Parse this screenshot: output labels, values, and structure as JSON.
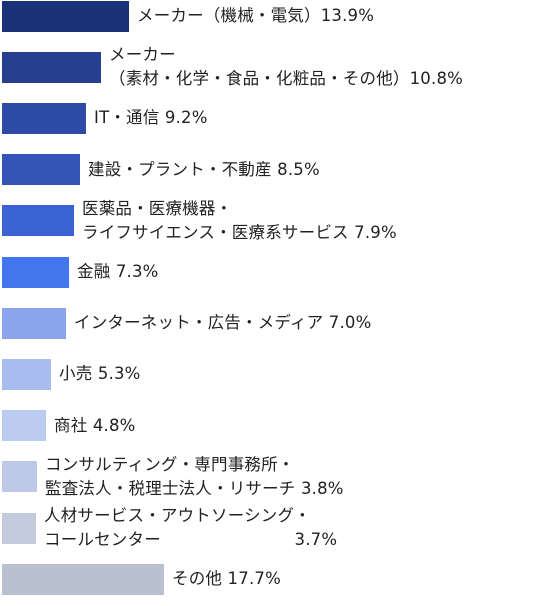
{
  "chart_data": {
    "type": "bar",
    "orientation": "horizontal",
    "bars": [
      {
        "lines": [
          "メーカー（機械・電気）13.9%"
        ],
        "value": 13.9,
        "color": "#1a3178"
      },
      {
        "lines": [
          "メーカー",
          "（素材・化学・食品・化粧品・その他）10.8%"
        ],
        "value": 10.8,
        "color": "#263f8f"
      },
      {
        "lines": [
          "IT・通信 9.2%"
        ],
        "value": 9.2,
        "color": "#2d4ba6"
      },
      {
        "lines": [
          "建設・プラント・不動産 8.5%"
        ],
        "value": 8.5,
        "color": "#3454b8"
      },
      {
        "lines": [
          "医薬品・医療機器・",
          "ライフサイエンス・医療系サービス 7.9%"
        ],
        "value": 7.9,
        "color": "#3c63d4"
      },
      {
        "lines": [
          "金融 7.3%"
        ],
        "value": 7.3,
        "color": "#4376ee"
      },
      {
        "lines": [
          "インターネット・広告・メディア 7.0%"
        ],
        "value": 7.0,
        "color": "#8aa5ee"
      },
      {
        "lines": [
          "小売 5.3%"
        ],
        "value": 5.3,
        "color": "#a8bcef"
      },
      {
        "lines": [
          "商社 4.8%"
        ],
        "value": 4.8,
        "color": "#bccbf0"
      },
      {
        "lines": [
          "コンサルティング・専門事務所・",
          "監査法人・税理士法人・リサーチ 3.8%"
        ],
        "value": 3.8,
        "color": "#bdc9e6"
      },
      {
        "lines": [
          "人材サービス・アウトソーシング・",
          "コールセンター　　　　　　　　3.7%"
        ],
        "value": 3.7,
        "color": "#c3cadb"
      },
      {
        "lines": [
          "その他 17.7%"
        ],
        "value": 17.7,
        "color": "#b9c0d0"
      }
    ]
  }
}
